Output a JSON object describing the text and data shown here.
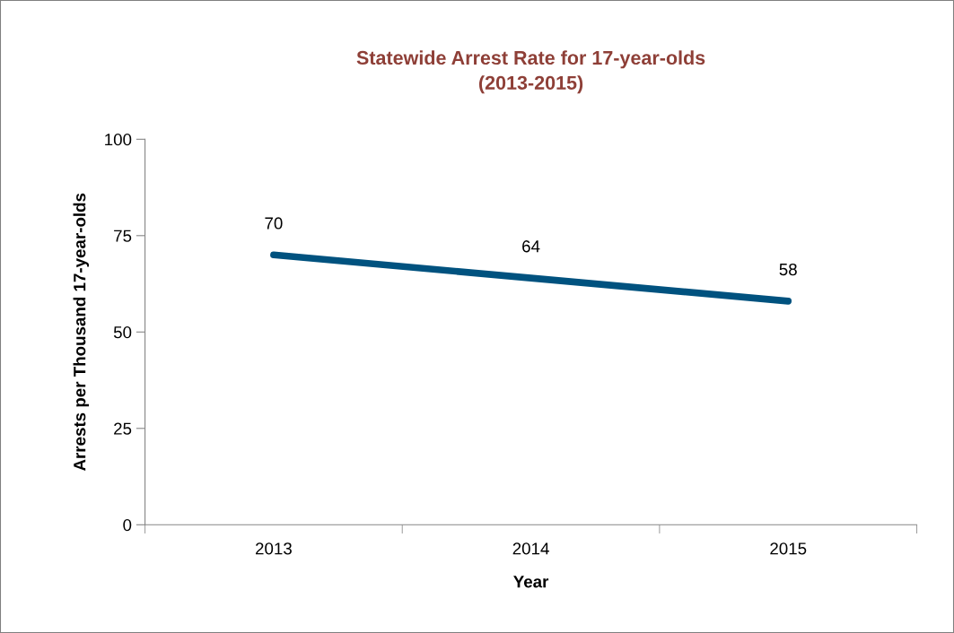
{
  "chart_data": {
    "type": "line",
    "title": "Statewide Arrest Rate for 17-year-olds\n(2013-2015)",
    "xlabel": "Year",
    "ylabel": "Arrests per Thousand 17-year-olds",
    "categories": [
      "2013",
      "2014",
      "2015"
    ],
    "series": [
      {
        "color": "#00527f",
        "values": [
          70,
          64,
          58
        ]
      }
    ],
    "ylim": [
      0,
      100
    ],
    "yticks": [
      0,
      25,
      50,
      75,
      100
    ],
    "data_labels": true,
    "grid": false,
    "legend": false,
    "marker": "none",
    "line_style": "solid"
  }
}
